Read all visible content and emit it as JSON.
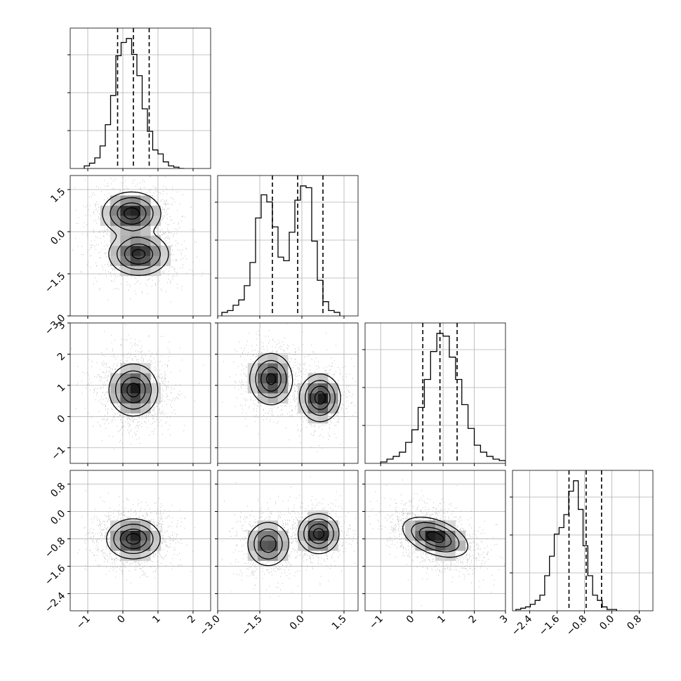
{
  "chart_data": {
    "type": "corner",
    "title": "",
    "grid": true,
    "parameters": [
      {
        "range": [
          -1.5,
          2.5
        ],
        "ticks": [
          -1,
          0,
          1,
          2
        ],
        "tick_labels": [
          "−1",
          "0",
          "1",
          "2"
        ],
        "quantiles": [
          -0.15,
          0.3,
          0.75
        ]
      },
      {
        "range": [
          -3.0,
          2.0
        ],
        "ticks": [
          -3.0,
          -1.5,
          0.0,
          1.5
        ],
        "tick_labels": [
          "−3.0",
          "−1.5",
          "0.0",
          "1.5"
        ],
        "quantiles": [
          -1.05,
          -0.15,
          0.75
        ]
      },
      {
        "range": [
          -1.5,
          3.0
        ],
        "ticks": [
          -1,
          0,
          1,
          2,
          3
        ],
        "tick_labels": [
          "−1",
          "0",
          "1",
          "2",
          "3"
        ],
        "quantiles": [
          0.35,
          0.9,
          1.45
        ]
      },
      {
        "range": [
          -2.9,
          1.2
        ],
        "ticks": [
          -2.4,
          -1.6,
          -0.8,
          0.0,
          0.8
        ],
        "tick_labels": [
          "−2.4",
          "−1.6",
          "−0.8",
          "0.0",
          "0.8"
        ],
        "quantiles": [
          -1.25,
          -0.75,
          -0.3
        ]
      }
    ],
    "histograms": [
      {
        "param": 0,
        "bin_start": -1.1,
        "bin_width": 0.15,
        "counts": [
          2,
          4,
          8,
          17,
          33,
          55,
          85,
          95,
          98,
          86,
          70,
          45,
          28,
          14,
          11,
          5,
          2,
          1,
          0
        ]
      },
      {
        "param": 1,
        "bin_start": -2.85,
        "bin_width": 0.2,
        "counts": [
          2,
          3,
          6,
          9,
          17,
          30,
          55,
          68,
          64,
          50,
          33,
          31,
          47,
          65,
          73,
          72,
          42,
          20,
          8,
          3,
          2
        ]
      },
      {
        "param": 2,
        "bin_start": -1.0,
        "bin_width": 0.2,
        "counts": [
          1,
          3,
          5,
          8,
          15,
          24,
          40,
          60,
          80,
          93,
          91,
          76,
          60,
          42,
          25,
          13,
          8,
          5,
          3,
          2,
          1
        ]
      },
      {
        "param": 3,
        "bin_start": -2.8,
        "bin_width": 0.14,
        "counts": [
          1,
          2,
          3,
          5,
          8,
          12,
          27,
          42,
          59,
          64,
          74,
          92,
          100,
          78,
          50,
          27,
          12,
          8,
          3,
          1,
          1
        ]
      }
    ],
    "contour_panels": [
      {
        "x": 0,
        "y": 1,
        "modes": [
          {
            "cx": 0.25,
            "cy": 0.65,
            "sx": 0.6,
            "sy": 0.55,
            "peak": 1.0
          },
          {
            "cx": 0.45,
            "cy": -0.8,
            "sx": 0.62,
            "sy": 0.55,
            "peak": 0.95
          }
        ]
      },
      {
        "x": 0,
        "y": 2,
        "modes": [
          {
            "cx": 0.3,
            "cy": 0.85,
            "sx": 0.5,
            "sy": 0.6,
            "peak": 1.0
          }
        ]
      },
      {
        "x": 1,
        "y": 2,
        "modes": [
          {
            "cx": -1.1,
            "cy": 1.2,
            "sx": 0.55,
            "sy": 0.6,
            "peak": 0.95
          },
          {
            "cx": 0.65,
            "cy": 0.6,
            "sx": 0.52,
            "sy": 0.55,
            "peak": 1.0
          }
        ]
      },
      {
        "x": 0,
        "y": 3,
        "modes": [
          {
            "cx": 0.3,
            "cy": -0.8,
            "sx": 0.55,
            "sy": 0.42,
            "peak": 1.0
          }
        ]
      },
      {
        "x": 1,
        "y": 3,
        "modes": [
          {
            "cx": -1.2,
            "cy": -0.95,
            "sx": 0.55,
            "sy": 0.48,
            "peak": 0.8
          },
          {
            "cx": 0.6,
            "cy": -0.65,
            "sx": 0.52,
            "sy": 0.42,
            "peak": 1.0
          }
        ]
      },
      {
        "x": 2,
        "y": 3,
        "modes": [
          {
            "cx": 0.75,
            "cy": -0.75,
            "sx": 0.75,
            "sy": 0.42,
            "peak": 1.0,
            "rho": -0.45
          }
        ]
      }
    ],
    "contour_levels": [
      0.12,
      0.32,
      0.6,
      0.86
    ]
  }
}
